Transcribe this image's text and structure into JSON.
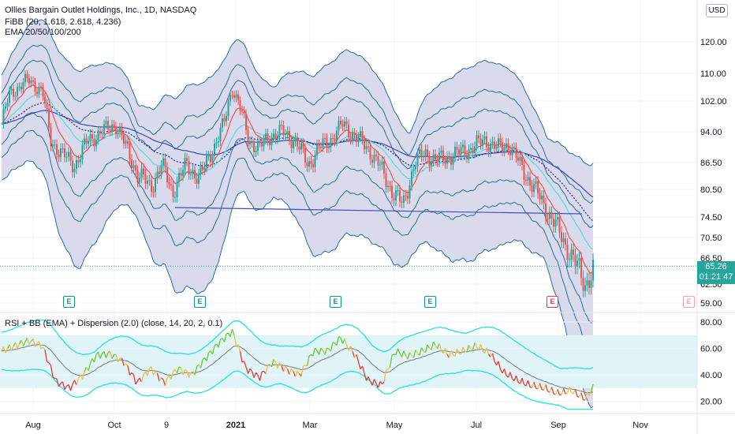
{
  "header": {
    "title": "Ollies Bargain Outlet Holdings, Inc., 1D, NASDAQ",
    "ind1": "FiBB (20, 1.618, 2.618, 4.236)",
    "ind2": "EMA 20/50/100/200",
    "currency": "USD"
  },
  "price_tag": {
    "price": "65.26",
    "countdown": "01:21:47"
  },
  "lower_pane": {
    "label": "RSI + BB (EMA) + Dispersion (2.0) (close, 14, 20, 2, 0.1)"
  },
  "earnings_icon_letter": "E",
  "colors": {
    "band_fill": "#d4d4ea",
    "band_line": "#2a6f97",
    "up": "#26a69a",
    "down": "#ef5350",
    "ema20": "#ef5350",
    "ema50": "#5ad8d8",
    "ema100": "#1a237e",
    "ema200": "#3949ab",
    "rsi_band": "#40e0e0",
    "rsi_zone": "#e0f4f8"
  },
  "chart_data": [
    {
      "type": "candlestick",
      "title": "Ollies Bargain Outlet Holdings, Inc., 1D, NASDAQ",
      "x_ticks": [
        "Aug",
        "Oct",
        "9",
        "2021",
        "Mar",
        "May",
        "Jul",
        "Sep",
        "Nov"
      ],
      "y_ticks": [
        59.0,
        62.5,
        66.5,
        70.5,
        74.5,
        80.5,
        86.5,
        94.0,
        102.0,
        110.0,
        120.0
      ],
      "close_path": [
        [
          0,
          96
        ],
        [
          0.3,
          104
        ],
        [
          0.6,
          106
        ],
        [
          1.0,
          108
        ],
        [
          1.5,
          105
        ],
        [
          1.8,
          92
        ],
        [
          2.3,
          88
        ],
        [
          2.7,
          86
        ],
        [
          3.2,
          92
        ],
        [
          3.7,
          94
        ],
        [
          4.2,
          96
        ],
        [
          4.6,
          90
        ],
        [
          5.0,
          84
        ],
        [
          5.5,
          81
        ],
        [
          5.9,
          86
        ],
        [
          6.3,
          80
        ],
        [
          6.8,
          86
        ],
        [
          7.3,
          83
        ],
        [
          7.8,
          90
        ],
        [
          8.2,
          96
        ],
        [
          8.5,
          106
        ],
        [
          8.8,
          100
        ],
        [
          9.1,
          92
        ],
        [
          9.5,
          90
        ],
        [
          9.9,
          93
        ],
        [
          10.3,
          94
        ],
        [
          10.8,
          92
        ],
        [
          11.3,
          86
        ],
        [
          11.7,
          90
        ],
        [
          12.1,
          92
        ],
        [
          12.6,
          96
        ],
        [
          13.0,
          93
        ],
        [
          13.5,
          90
        ],
        [
          13.9,
          86
        ],
        [
          14.4,
          80
        ],
        [
          14.8,
          77
        ],
        [
          15.2,
          86
        ],
        [
          15.6,
          89
        ],
        [
          16.0,
          87
        ],
        [
          16.5,
          88
        ],
        [
          16.9,
          89
        ],
        [
          17.3,
          90
        ],
        [
          17.8,
          92
        ],
        [
          18.3,
          90
        ],
        [
          18.7,
          91
        ],
        [
          19.1,
          86
        ],
        [
          19.5,
          82
        ],
        [
          19.9,
          78
        ],
        [
          20.3,
          74
        ],
        [
          20.7,
          70
        ],
        [
          21.1,
          66
        ],
        [
          21.5,
          62.5
        ],
        [
          21.8,
          64.5
        ]
      ],
      "earnings_markers": [
        "E",
        "E",
        "E",
        "E",
        "E",
        "E"
      ],
      "last_price": 65.26,
      "countdown": "01:21:47",
      "currency": "USD"
    },
    {
      "type": "line",
      "title": "RSI + BB (EMA) + Dispersion (2.0) (close, 14, 20, 2, 0.1)",
      "y_ticks": [
        20.0,
        40.0,
        60.0,
        80.0
      ],
      "series": [
        {
          "values": [
            [
              0,
              58
            ],
            [
              1.0,
              66
            ],
            [
              1.5,
              62
            ],
            [
              2.0,
              35
            ],
            [
              2.5,
              30
            ],
            [
              3.0,
              40
            ],
            [
              3.5,
              55
            ],
            [
              4.0,
              56
            ],
            [
              4.5,
              50
            ],
            [
              5.0,
              34
            ],
            [
              5.5,
              45
            ],
            [
              6.0,
              34
            ],
            [
              6.5,
              45
            ],
            [
              7.0,
              40
            ],
            [
              7.5,
              52
            ],
            [
              8.0,
              64
            ],
            [
              8.5,
              73
            ],
            [
              9.0,
              45
            ],
            [
              9.5,
              38
            ],
            [
              10.0,
              50
            ],
            [
              10.5,
              44
            ],
            [
              11.0,
              40
            ],
            [
              11.5,
              58
            ],
            [
              12.0,
              58
            ],
            [
              12.5,
              68
            ],
            [
              13.0,
              56
            ],
            [
              13.5,
              36
            ],
            [
              14.0,
              32
            ],
            [
              14.5,
              58
            ],
            [
              15.0,
              54
            ],
            [
              15.5,
              58
            ],
            [
              16.0,
              63
            ],
            [
              16.5,
              55
            ],
            [
              17.0,
              58
            ],
            [
              17.5,
              62
            ],
            [
              18.0,
              56
            ],
            [
              18.5,
              42
            ],
            [
              19.0,
              36
            ],
            [
              19.5,
              32
            ],
            [
              20.0,
              30
            ],
            [
              20.5,
              26
            ],
            [
              21.0,
              28
            ],
            [
              21.5,
              22
            ],
            [
              21.8,
              30
            ]
          ]
        }
      ]
    }
  ]
}
